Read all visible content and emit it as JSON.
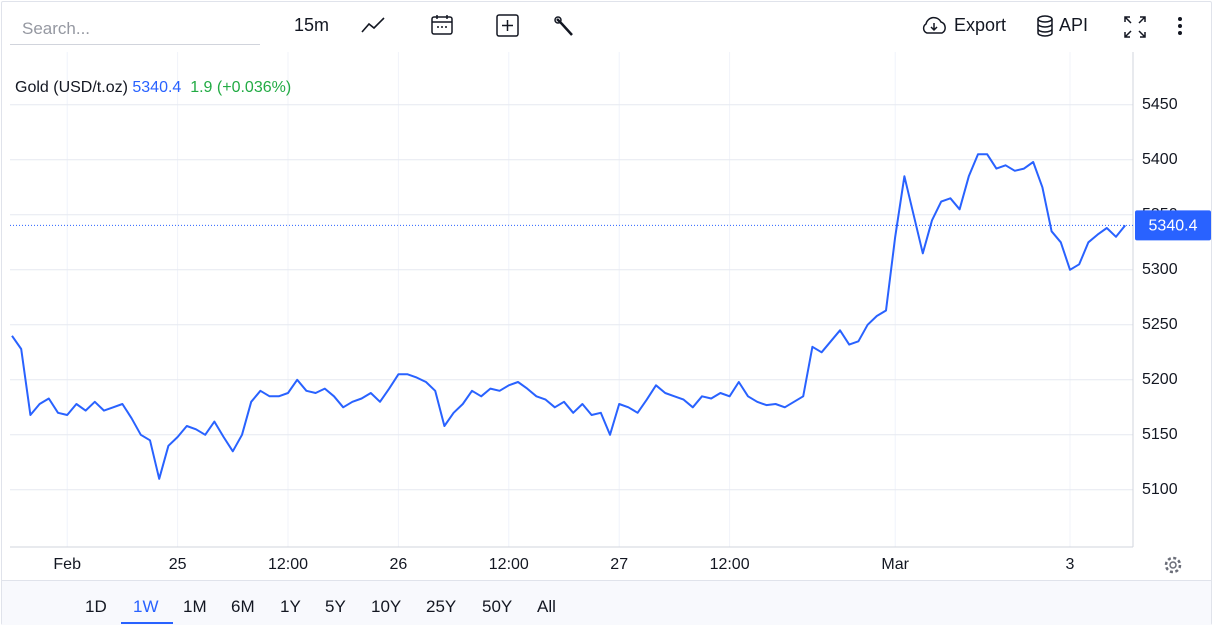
{
  "toolbar": {
    "search_placeholder": "Search...",
    "interval": "15m",
    "export": "Export",
    "api": "API"
  },
  "chart_data": {
    "type": "line",
    "legend": {
      "name": "Gold (USD/t.oz)",
      "price": 5340.4,
      "change": 1.9,
      "change_pct": "(+0.036%)"
    },
    "categories": [
      null,
      null,
      null,
      null,
      null,
      null,
      "Feb",
      null,
      null,
      null,
      null,
      null,
      null,
      null,
      null,
      null,
      null,
      null,
      "25",
      null,
      null,
      null,
      null,
      null,
      null,
      null,
      null,
      null,
      null,
      null,
      "12:00",
      null,
      null,
      null,
      null,
      null,
      null,
      null,
      null,
      null,
      null,
      null,
      "26",
      null,
      null,
      null,
      null,
      null,
      null,
      null,
      null,
      null,
      null,
      null,
      "12:00",
      null,
      null,
      null,
      null,
      null,
      null,
      null,
      null,
      null,
      null,
      null,
      "27",
      null,
      null,
      null,
      null,
      null,
      null,
      null,
      null,
      null,
      null,
      null,
      "12:00",
      null,
      null,
      null,
      null,
      null,
      null,
      null,
      null,
      null,
      null,
      null,
      null,
      null,
      null,
      null,
      null,
      null,
      "Mar",
      null,
      null,
      null,
      null,
      null,
      null,
      null,
      null,
      null,
      null,
      null,
      null,
      null,
      null,
      null,
      null,
      null,
      null,
      "3",
      null,
      null,
      null,
      null,
      null,
      null
    ],
    "series": [
      {
        "name": "Gold (USD/t.oz)",
        "color": "#2962ff",
        "values": [
          5240,
          5228,
          5168,
          5178,
          5183,
          5170,
          5168,
          5178,
          5172,
          5180,
          5172,
          5175,
          5178,
          5165,
          5150,
          5145,
          5110,
          5140,
          5148,
          5158,
          5155,
          5150,
          5162,
          5148,
          5135,
          5150,
          5180,
          5190,
          5185,
          5185,
          5188,
          5200,
          5190,
          5188,
          5192,
          5185,
          5175,
          5180,
          5183,
          5188,
          5180,
          5192,
          5205,
          5205,
          5202,
          5198,
          5190,
          5158,
          5170,
          5178,
          5190,
          5185,
          5192,
          5190,
          5195,
          5198,
          5192,
          5185,
          5182,
          5175,
          5180,
          5170,
          5178,
          5168,
          5170,
          5150,
          5178,
          5175,
          5170,
          5182,
          5195,
          5188,
          5185,
          5182,
          5175,
          5185,
          5183,
          5188,
          5185,
          5198,
          5185,
          5180,
          5177,
          5178,
          5175,
          5180,
          5185,
          5230,
          5225,
          5235,
          5245,
          5232,
          5235,
          5250,
          5258,
          5263,
          5330,
          5385,
          5350,
          5315,
          5345,
          5362,
          5365,
          5355,
          5385,
          5405,
          5405,
          5392,
          5395,
          5390,
          5392,
          5398,
          5375,
          5335,
          5325,
          5300,
          5305,
          5325,
          5332,
          5338,
          5330,
          5340.4
        ]
      }
    ],
    "ylim": [
      5048,
      5498
    ],
    "yticks": [
      5100,
      5150,
      5200,
      5250,
      5300,
      5350,
      5400,
      5450
    ],
    "grid": true
  },
  "ranges": [
    "1D",
    "1W",
    "1M",
    "6M",
    "1Y",
    "5Y",
    "10Y",
    "25Y",
    "50Y",
    "All"
  ],
  "selected_range": "1W"
}
